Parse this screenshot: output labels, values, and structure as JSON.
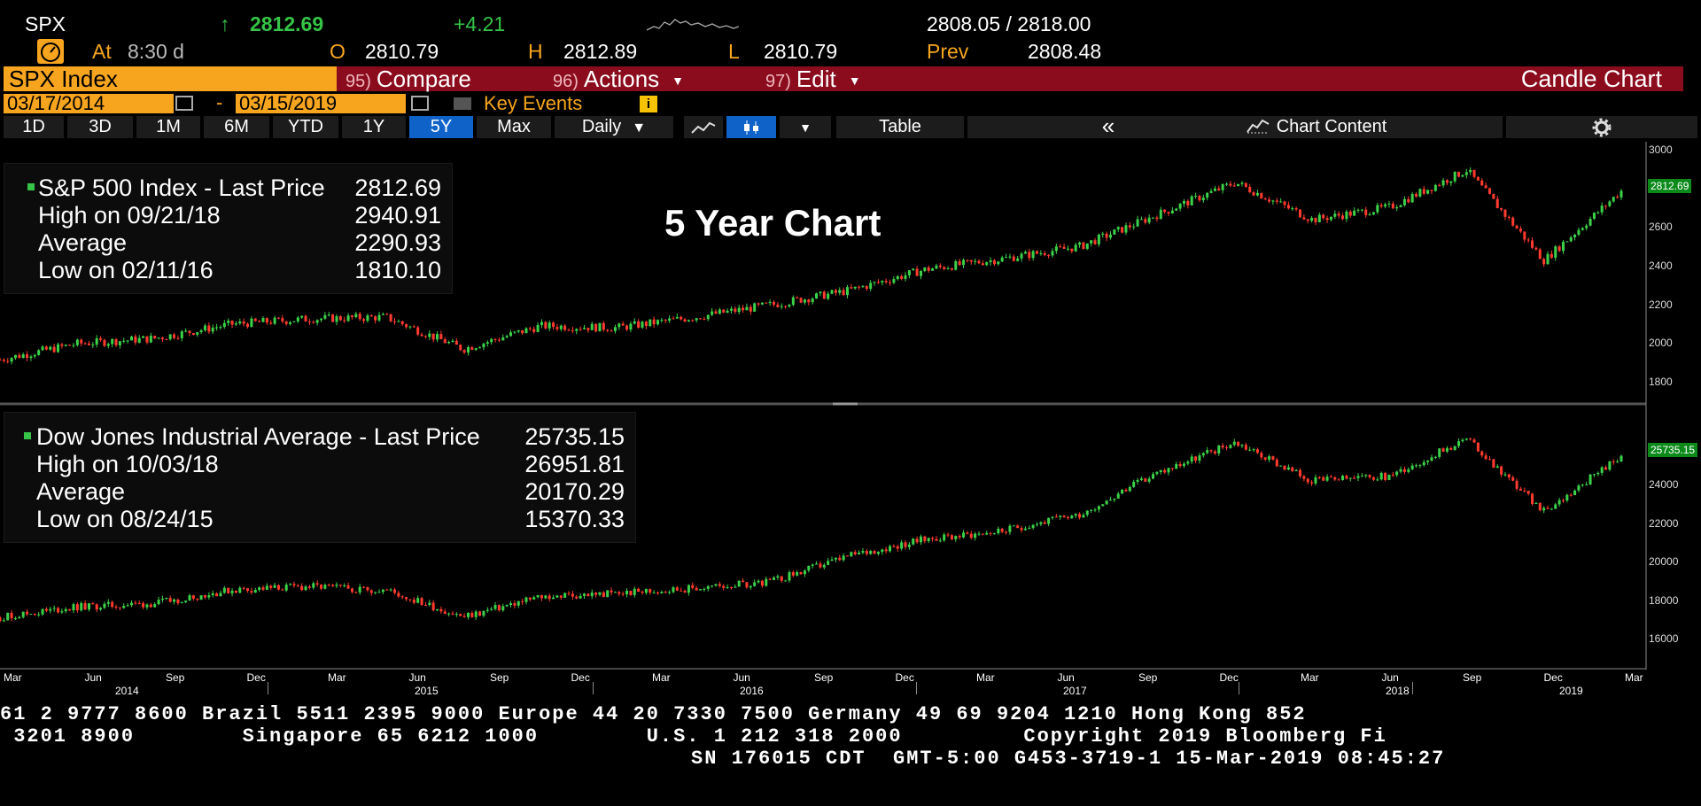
{
  "quote": {
    "ticker": "SPX",
    "arrow": "↑",
    "last": "2812.69",
    "change": "+4.21",
    "bid_ask": "2808.05 / 2818.00",
    "at_label": "At",
    "at_time": "8:30 d",
    "open_label": "O",
    "open": "2810.79",
    "high_label": "H",
    "high": "2812.89",
    "low_label": "L",
    "low": "2810.79",
    "prev_label": "Prev",
    "prev": "2808.48"
  },
  "menu": {
    "security": "SPX Index",
    "compare_num": "95)",
    "compare": "Compare",
    "actions_num": "96)",
    "actions": "Actions",
    "edit_num": "97)",
    "edit": "Edit",
    "chart_type": "Candle Chart"
  },
  "dates": {
    "start": "03/17/2014",
    "dash": "-",
    "end": "03/15/2019",
    "key_events": "Key Events",
    "info": "i"
  },
  "toolbar": {
    "ranges": [
      "1D",
      "3D",
      "1M",
      "6M",
      "YTD",
      "1Y",
      "5Y",
      "Max"
    ],
    "selected": "5Y",
    "frequency": "Daily",
    "table": "Table",
    "collapse": "«",
    "chart_content": "Chart Content"
  },
  "overlay_text": "5 Year Chart",
  "panels": [
    {
      "name": "S&P 500 Index - Last Price",
      "last": "2812.69",
      "high_label": "High on 09/21/18",
      "high": "2940.91",
      "avg_label": "Average",
      "avg": "2290.93",
      "low_label": "Low on 02/11/16",
      "low": "1810.10",
      "yticks": [
        "3000",
        "2800",
        "2600",
        "2400",
        "2200",
        "2000",
        "1800"
      ],
      "last_tag": "2812.69"
    },
    {
      "name": "Dow Jones Industrial Average - Last Price",
      "last": "25735.15",
      "high_label": "High on 10/03/18",
      "high": "26951.81",
      "avg_label": "Average",
      "avg": "20170.29",
      "low_label": "Low on 08/24/15",
      "low": "15370.33",
      "yticks": [
        "24000",
        "22000",
        "20000",
        "18000",
        "16000"
      ],
      "last_tag": "25735.15"
    }
  ],
  "xaxis": {
    "months": [
      "Mar",
      "Jun",
      "Sep",
      "Dec",
      "Mar",
      "Jun",
      "Sep",
      "Dec",
      "Mar",
      "Jun",
      "Sep",
      "Dec",
      "Mar",
      "Jun",
      "Sep",
      "Dec",
      "Mar",
      "Jun",
      "Sep",
      "Dec",
      "Mar"
    ],
    "years": [
      "2014",
      "2015",
      "2016",
      "2017",
      "2018",
      "2019"
    ]
  },
  "footer": {
    "line1": "61 2 9777 8600 Brazil 5511 2395 9000 Europe 44 20 7330 7500 Germany 49 69 9204 1210 Hong Kong 852",
    "line2": " 3201 8900        Singapore 65 6212 1000        U.S. 1 212 318 2000         Copyright 2019 Bloomberg Fi",
    "line3": "SN 176015 CDT  GMT-5:00 G453-3719-1 15-Mar-2019 08:45:27"
  },
  "chart_data": [
    {
      "type": "candlestick",
      "title": "S&P 500 Index - Last Price",
      "x": [
        "2014-03",
        "2014-06",
        "2014-09",
        "2014-12",
        "2015-03",
        "2015-06",
        "2015-09",
        "2015-12",
        "2016-03",
        "2016-06",
        "2016-09",
        "2016-12",
        "2017-03",
        "2017-06",
        "2017-09",
        "2017-12",
        "2018-01",
        "2018-03",
        "2018-06",
        "2018-09",
        "2018-12",
        "2019-03"
      ],
      "values": [
        1860,
        1950,
        1980,
        2060,
        2090,
        2100,
        1920,
        2050,
        2040,
        2100,
        2170,
        2250,
        2370,
        2430,
        2500,
        2680,
        2860,
        2650,
        2720,
        2930,
        2420,
        2812
      ],
      "ylim": [
        1700,
        3050
      ],
      "yticks": [
        1800,
        2000,
        2200,
        2400,
        2600,
        2800,
        3000
      ]
    },
    {
      "type": "candlestick",
      "title": "Dow Jones Industrial Average - Last Price",
      "x": [
        "2014-03",
        "2014-06",
        "2014-09",
        "2014-12",
        "2015-03",
        "2015-06",
        "2015-09",
        "2015-12",
        "2016-03",
        "2016-06",
        "2016-09",
        "2016-12",
        "2017-03",
        "2017-06",
        "2017-09",
        "2017-12",
        "2018-01",
        "2018-03",
        "2018-06",
        "2018-09",
        "2018-12",
        "2019-03"
      ],
      "values": [
        16200,
        16800,
        17000,
        17800,
        18000,
        17800,
        16200,
        17400,
        17600,
        17900,
        18300,
        19800,
        20800,
        21300,
        22300,
        24700,
        26500,
        24200,
        24500,
        26700,
        22400,
        25735
      ],
      "ylim": [
        15000,
        27500
      ],
      "yticks": [
        16000,
        18000,
        20000,
        22000,
        24000
      ]
    }
  ]
}
